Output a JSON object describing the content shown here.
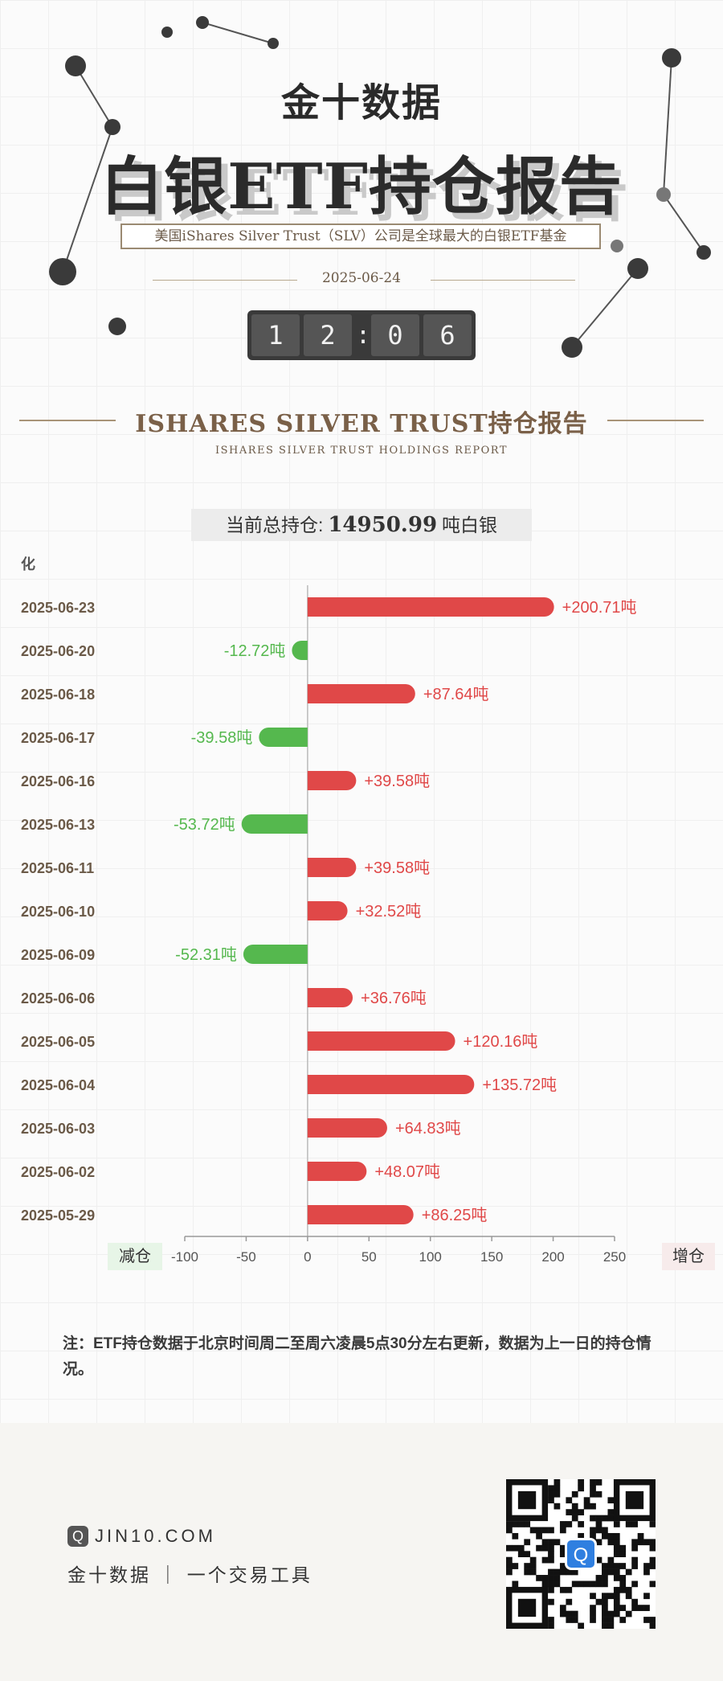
{
  "header": {
    "brand": "金十数据",
    "title": "白银ETF持仓报告",
    "subtitle": "美国iShares Silver Trust（SLV）公司是全球最大的白银ETF基金",
    "date": "2025-06-24",
    "time_digits": [
      "1",
      "2",
      "0",
      "6"
    ],
    "time_separator": ":"
  },
  "section": {
    "title": "ISHARES SILVER TRUST持仓报告",
    "subtitle": "ISHARES SILVER TRUST HOLDINGS REPORT"
  },
  "total": {
    "label": "当前总持仓:",
    "value": "14950.99",
    "unit": "吨白银"
  },
  "chart_labels": {
    "corner": "化",
    "decrease": "减仓",
    "increase": "增仓"
  },
  "chart_data": {
    "type": "bar",
    "orientation": "horizontal",
    "categories": [
      "2025-06-23",
      "2025-06-20",
      "2025-06-18",
      "2025-06-17",
      "2025-06-16",
      "2025-06-13",
      "2025-06-11",
      "2025-06-10",
      "2025-06-09",
      "2025-06-06",
      "2025-06-05",
      "2025-06-04",
      "2025-06-03",
      "2025-06-02",
      "2025-05-29"
    ],
    "values": [
      200.71,
      -12.72,
      87.64,
      -39.58,
      39.58,
      -53.72,
      39.58,
      32.52,
      -52.31,
      36.76,
      120.16,
      135.72,
      64.83,
      48.07,
      86.25
    ],
    "data_labels": [
      "+200.71吨",
      "-12.72吨",
      "+87.64吨",
      "-39.58吨",
      "+39.58吨",
      "-53.72吨",
      "+39.58吨",
      "+32.52吨",
      "-52.31吨",
      "+36.76吨",
      "+120.16吨",
      "+135.72吨",
      "+64.83吨",
      "+48.07吨",
      "+86.25吨"
    ],
    "xlim": [
      -100,
      250
    ],
    "xticks": [
      -100,
      -50,
      0,
      50,
      100,
      150,
      200,
      250
    ],
    "xtick_labels": [
      "-100",
      "-50",
      "0",
      "50",
      "100",
      "150",
      "200",
      "250"
    ],
    "colors": {
      "positive": "#e04848",
      "negative": "#55b84e"
    },
    "grid": false
  },
  "note": "注：ETF持仓数据于北京时间周二至周六凌晨5点30分左右更新，数据为上一日的持仓情况。",
  "footer": {
    "site": "JIN10.COM",
    "slogan": "金十数据 ｜ 一个交易工具",
    "logo_icon": "jin10-logo-icon",
    "qr_icon": "qr-code-icon"
  }
}
